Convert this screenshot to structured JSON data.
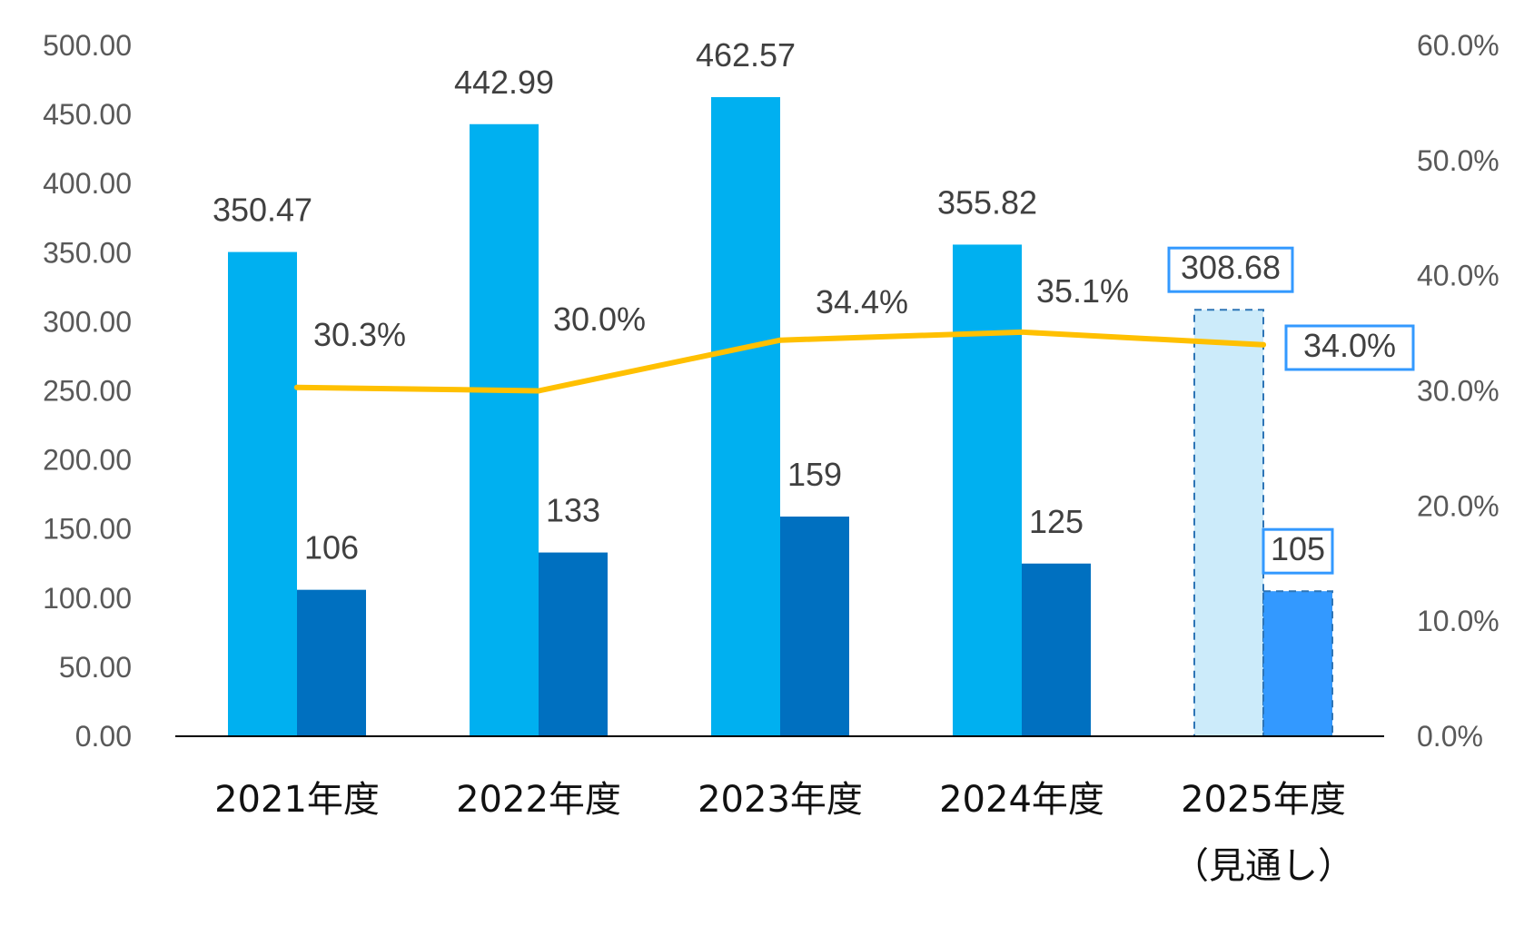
{
  "chart_data": {
    "type": "bar",
    "categories": [
      "2021年度",
      "2022年度",
      "2023年度",
      "2024年度",
      "2025年度"
    ],
    "category_sublabels": [
      "",
      "",
      "",
      "",
      "（見通し）"
    ],
    "series": [
      {
        "kind": "bar",
        "axis": "left",
        "color": "#00B0F0",
        "forecast_color": "#CCEBFA",
        "values": [
          350.47,
          442.99,
          462.57,
          355.82,
          308.68
        ],
        "labels": [
          "350.47",
          "442.99",
          "462.57",
          "355.82",
          "308.68"
        ]
      },
      {
        "kind": "bar",
        "axis": "left",
        "color": "#0070C0",
        "forecast_color": "#3399FF",
        "values": [
          106,
          133,
          159,
          125,
          105
        ],
        "labels": [
          "106",
          "133",
          "159",
          "125",
          "105"
        ]
      },
      {
        "kind": "line",
        "axis": "right",
        "color": "#FFC000",
        "values": [
          30.3,
          30.0,
          34.4,
          35.1,
          34.0
        ],
        "labels": [
          "30.3%",
          "30.0%",
          "34.4%",
          "35.1%",
          "34.0%"
        ]
      }
    ],
    "forecast_index": 4,
    "forecast_style": "dashed-outline",
    "forecast_label_box_color": "#3399FF",
    "y_left": {
      "min": 0,
      "max": 500,
      "ticks": [
        "0.00",
        "50.00",
        "100.00",
        "150.00",
        "200.00",
        "250.00",
        "300.00",
        "350.00",
        "400.00",
        "450.00",
        "500.00"
      ]
    },
    "y_right": {
      "min": 0,
      "max": 60,
      "ticks": [
        "0.0%",
        "10.0%",
        "20.0%",
        "30.0%",
        "40.0%",
        "50.0%",
        "60.0%"
      ]
    },
    "title": "",
    "xlabel": "",
    "ylabel": "",
    "grid": false,
    "legend": "none"
  }
}
